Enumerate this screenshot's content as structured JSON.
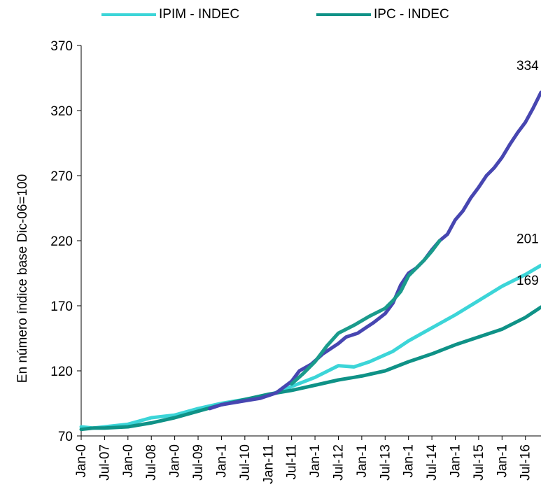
{
  "chart_data": {
    "type": "line",
    "title": "",
    "xlabel": "",
    "ylabel": "En número índice base Dic-06=100",
    "ylim": [
      70,
      370
    ],
    "yticks": [
      70,
      120,
      170,
      220,
      270,
      320,
      370
    ],
    "grid": false,
    "legend": {
      "placement": "top"
    },
    "x_tick_labels": [
      "Jan-0",
      "Jul-07",
      "Jan-0",
      "Jul-08",
      "Jan-0",
      "Jul-09",
      "Jan-1",
      "Jul-10",
      "Jan-11",
      "Jul-11",
      "Jan-1",
      "Jul-12",
      "Jan-1",
      "Jul-13",
      "Jan-1",
      "Jul-14",
      "Jan-1",
      "Jul-15",
      "Jan-1",
      "Jul-16"
    ],
    "x_tick_positions": [
      0,
      6,
      12,
      18,
      24,
      30,
      36,
      42,
      48,
      54,
      60,
      66,
      72,
      78,
      84,
      90,
      96,
      102,
      108,
      114
    ],
    "x_range": [
      0,
      118
    ],
    "series": [
      {
        "name": "IPIM - INDEC",
        "color": "#3cd5d8",
        "x": [
          0,
          3,
          6,
          12,
          18,
          24,
          30,
          36,
          42,
          48,
          54,
          60,
          66,
          70,
          74,
          80,
          84,
          90,
          96,
          102,
          108,
          114,
          118
        ],
        "y": [
          77,
          76,
          77,
          79,
          84,
          86,
          91,
          95,
          98,
          101,
          108,
          115,
          124,
          123,
          127,
          135,
          143,
          153,
          163,
          174,
          185,
          194,
          201
        ],
        "end_label": "201"
      },
      {
        "name": "IPC - INDEC",
        "color": "#0f9287",
        "x": [
          0,
          3,
          6,
          12,
          18,
          24,
          30,
          36,
          42,
          48,
          54,
          60,
          66,
          72,
          78,
          84,
          90,
          96,
          102,
          108,
          114,
          118
        ],
        "y": [
          75,
          76,
          76,
          77,
          80,
          84,
          89,
          94,
          98,
          102,
          105,
          109,
          113,
          116,
          120,
          127,
          133,
          140,
          146,
          152,
          161,
          169
        ],
        "end_label": "169"
      },
      {
        "color": "#4746b1",
        "x": [
          33,
          36,
          42,
          46,
          50,
          54,
          56,
          59,
          62,
          66,
          68,
          71,
          73,
          75,
          78,
          80,
          82,
          84,
          86,
          88,
          90,
          92,
          94,
          96,
          98,
          100,
          102,
          104,
          106,
          108,
          110,
          112,
          114,
          116,
          118
        ],
        "y": [
          91,
          94,
          97,
          99,
          103,
          112,
          120,
          125,
          133,
          141,
          146,
          149,
          153,
          157,
          164,
          172,
          186,
          195,
          199,
          205,
          213,
          220,
          225,
          236,
          243,
          253,
          261,
          270,
          276,
          284,
          294,
          303,
          311,
          322,
          334
        ],
        "end_label": "334"
      },
      {
        "color": "#1a9b8c",
        "x": [
          54,
          57,
          60,
          63,
          66,
          70,
          74,
          78,
          80,
          82,
          84,
          86,
          88,
          90,
          92
        ],
        "y": [
          110,
          118,
          127,
          139,
          149,
          155,
          162,
          168,
          174,
          181,
          193,
          199,
          205,
          212,
          220
        ],
        "end_label": ""
      }
    ]
  }
}
